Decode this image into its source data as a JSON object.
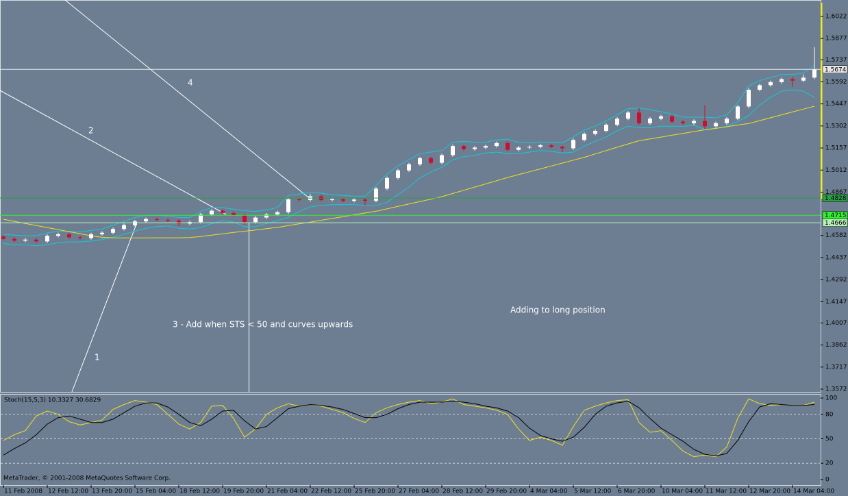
{
  "chart_data": [
    {
      "type": "candlestick",
      "categories": [
        "11 Feb 2008",
        null,
        null,
        null,
        "12 Feb 12:00",
        null,
        null,
        null,
        "13 Feb 20:00",
        null,
        null,
        null,
        "15 Feb 04:00",
        null,
        null,
        null,
        "18 Feb 12:00",
        null,
        null,
        null,
        "19 Feb 20:00",
        null,
        null,
        null,
        "21 Feb 04:00",
        null,
        null,
        null,
        "22 Feb 12:00",
        null,
        null,
        null,
        "25 Feb 20:00",
        null,
        null,
        null,
        "27 Feb 04:00",
        null,
        null,
        null,
        "28 Feb 12:00",
        null,
        null,
        null,
        "29 Feb 20:00",
        null,
        null,
        null,
        "4 Mar 04:00",
        null,
        null,
        null,
        "5 Mar 12:00",
        null,
        null,
        null,
        "6 Mar 20:00",
        null,
        null,
        null,
        "10 Mar 04:00",
        null,
        null,
        null,
        "11 Mar 12:00",
        null,
        null,
        null,
        "12 Mar 20:00",
        null,
        null,
        null,
        "14 Mar 04:00",
        null,
        null
      ],
      "ohlc": [
        [
          1.4575,
          1.4585,
          1.455,
          1.456
        ],
        [
          1.456,
          1.457,
          1.4538,
          1.4548
        ],
        [
          1.4548,
          1.4565,
          1.4538,
          1.4555
        ],
        [
          1.4555,
          1.4565,
          1.4533,
          1.4543
        ],
        [
          1.4543,
          1.459,
          1.4533,
          1.458
        ],
        [
          1.458,
          1.46,
          1.457,
          1.459
        ],
        [
          1.459,
          1.46,
          1.456,
          1.457
        ],
        [
          1.457,
          1.458,
          1.4555,
          1.4565
        ],
        [
          1.4565,
          1.46,
          1.4555,
          1.459
        ],
        [
          1.459,
          1.461,
          1.458,
          1.46
        ],
        [
          1.46,
          1.4635,
          1.459,
          1.4625
        ],
        [
          1.4625,
          1.466,
          1.4615,
          1.465
        ],
        [
          1.465,
          1.4685,
          1.464,
          1.4675
        ],
        [
          1.4675,
          1.47,
          1.4665,
          1.469
        ],
        [
          1.469,
          1.47,
          1.4675,
          1.4685
        ],
        [
          1.4685,
          1.4695,
          1.467,
          1.468
        ],
        [
          1.468,
          1.469,
          1.4645,
          1.466
        ],
        [
          1.466,
          1.468,
          1.465,
          1.467
        ],
        [
          1.467,
          1.473,
          1.466,
          1.472
        ],
        [
          1.472,
          1.4755,
          1.471,
          1.4745
        ],
        [
          1.4745,
          1.4755,
          1.472,
          1.473
        ],
        [
          1.473,
          1.474,
          1.4705,
          1.4715
        ],
        [
          1.4715,
          1.4725,
          1.465,
          1.467
        ],
        [
          1.467,
          1.471,
          1.466,
          1.47
        ],
        [
          1.47,
          1.473,
          1.469,
          1.472
        ],
        [
          1.472,
          1.4745,
          1.471,
          1.4735
        ],
        [
          1.4735,
          1.483,
          1.4725,
          1.482
        ],
        [
          1.482,
          1.483,
          1.4805,
          1.4815
        ],
        [
          1.4815,
          1.4855,
          1.4805,
          1.484
        ],
        [
          1.484,
          1.485,
          1.4805,
          1.4815
        ],
        [
          1.4815,
          1.483,
          1.4805,
          1.482
        ],
        [
          1.482,
          1.483,
          1.48,
          1.481
        ],
        [
          1.481,
          1.4828,
          1.48,
          1.4818
        ],
        [
          1.4818,
          1.4828,
          1.478,
          1.481
        ],
        [
          1.481,
          1.49,
          1.48,
          1.489
        ],
        [
          1.489,
          1.497,
          1.488,
          1.496
        ],
        [
          1.496,
          1.502,
          1.495,
          1.501
        ],
        [
          1.501,
          1.506,
          1.5,
          1.505
        ],
        [
          1.505,
          1.51,
          1.504,
          1.509
        ],
        [
          1.509,
          1.51,
          1.505,
          1.506
        ],
        [
          1.506,
          1.512,
          1.505,
          1.511
        ],
        [
          1.511,
          1.518,
          1.51,
          1.517
        ],
        [
          1.517,
          1.518,
          1.514,
          1.515
        ],
        [
          1.515,
          1.517,
          1.514,
          1.516
        ],
        [
          1.516,
          1.518,
          1.515,
          1.517
        ],
        [
          1.517,
          1.52,
          1.516,
          1.519
        ],
        [
          1.519,
          1.52,
          1.5135,
          1.5145
        ],
        [
          1.5145,
          1.517,
          1.5135,
          1.516
        ],
        [
          1.516,
          1.5175,
          1.515,
          1.5165
        ],
        [
          1.5165,
          1.5185,
          1.5155,
          1.5175
        ],
        [
          1.5175,
          1.5185,
          1.5155,
          1.5165
        ],
        [
          1.5165,
          1.5175,
          1.513,
          1.5155
        ],
        [
          1.5155,
          1.522,
          1.5145,
          1.521
        ],
        [
          1.521,
          1.526,
          1.52,
          1.525
        ],
        [
          1.525,
          1.528,
          1.524,
          1.527
        ],
        [
          1.527,
          1.532,
          1.526,
          1.531
        ],
        [
          1.531,
          1.536,
          1.53,
          1.535
        ],
        [
          1.535,
          1.54,
          1.534,
          1.539
        ],
        [
          1.539,
          1.542,
          1.531,
          1.532
        ],
        [
          1.532,
          1.536,
          1.531,
          1.535
        ],
        [
          1.535,
          1.5375,
          1.534,
          1.5365
        ],
        [
          1.5365,
          1.5375,
          1.532,
          1.533
        ],
        [
          1.533,
          1.534,
          1.531,
          1.532
        ],
        [
          1.532,
          1.5345,
          1.531,
          1.5335
        ],
        [
          1.5335,
          1.544,
          1.528,
          1.53
        ],
        [
          1.53,
          1.533,
          1.529,
          1.532
        ],
        [
          1.532,
          1.536,
          1.531,
          1.535
        ],
        [
          1.535,
          1.544,
          1.534,
          1.543
        ],
        [
          1.543,
          1.555,
          1.542,
          1.554
        ],
        [
          1.554,
          1.558,
          1.553,
          1.557
        ],
        [
          1.557,
          1.56,
          1.556,
          1.559
        ],
        [
          1.559,
          1.562,
          1.558,
          1.561
        ],
        [
          1.561,
          1.5625,
          1.556,
          1.56
        ],
        [
          1.56,
          1.564,
          1.559,
          1.562
        ],
        [
          1.562,
          1.582,
          1.561,
          1.5674
        ]
      ],
      "up_color": "#ffffff",
      "down_color": "#c8102e",
      "overlays": [
        {
          "color": "#18c8d8",
          "values": [
            1.459,
            1.4585,
            1.458,
            1.458,
            1.46,
            1.461,
            1.461,
            1.4605,
            1.4615,
            1.4625,
            1.465,
            1.4675,
            1.47,
            1.4715,
            1.4715,
            1.471,
            1.47,
            1.47,
            1.474,
            1.4765,
            1.4765,
            1.4755,
            1.4745,
            1.474,
            1.475,
            1.4765,
            1.4845,
            1.4855,
            1.4865,
            1.486,
            1.485,
            1.4845,
            1.484,
            1.484,
            1.491,
            1.4985,
            1.504,
            1.508,
            1.512,
            1.513,
            1.514,
            1.5195,
            1.52,
            1.5195,
            1.5195,
            1.521,
            1.5215,
            1.5195,
            1.519,
            1.5195,
            1.5195,
            1.519,
            1.523,
            1.5275,
            1.53,
            1.5335,
            1.5375,
            1.5415,
            1.542,
            1.541,
            1.5395,
            1.538,
            1.536,
            1.536,
            1.536,
            1.5355,
            1.5375,
            1.5455,
            1.5565,
            1.56,
            1.562,
            1.564,
            1.564,
            1.565,
            1.57
          ]
        },
        {
          "color": "#18c8d8",
          "values": [
            1.453,
            1.452,
            1.452,
            1.4515,
            1.452,
            1.4535,
            1.454,
            1.454,
            1.4545,
            1.4555,
            1.457,
            1.459,
            1.461,
            1.463,
            1.464,
            1.4645,
            1.463,
            1.4625,
            1.4635,
            1.466,
            1.468,
            1.467,
            1.464,
            1.464,
            1.466,
            1.468,
            1.47,
            1.474,
            1.477,
            1.478,
            1.4785,
            1.4785,
            1.4785,
            1.478,
            1.478,
            1.48,
            1.485,
            1.49,
            1.496,
            1.5,
            1.503,
            1.508,
            1.51,
            1.511,
            1.5125,
            1.513,
            1.512,
            1.512,
            1.513,
            1.514,
            1.5135,
            1.5125,
            1.513,
            1.517,
            1.52,
            1.523,
            1.527,
            1.53,
            1.529,
            1.529,
            1.53,
            1.53,
            1.53,
            1.5305,
            1.528,
            1.5285,
            1.53,
            1.533,
            1.537,
            1.544,
            1.549,
            1.553,
            1.554,
            1.553,
            1.549
          ]
        },
        {
          "color": "#f0e020",
          "values": [
            1.4689,
            1.4675,
            1.4661,
            1.4648,
            1.4634,
            1.4621,
            1.4607,
            1.4594,
            1.458,
            1.457,
            1.4567,
            1.4566,
            1.4566,
            1.4566,
            1.4567,
            1.4567,
            1.4567,
            1.4568,
            1.4575,
            1.4584,
            1.4593,
            1.4602,
            1.461,
            1.4618,
            1.4627,
            1.4635,
            1.4647,
            1.4659,
            1.467,
            1.4682,
            1.4694,
            1.4706,
            1.4718,
            1.473,
            1.4741,
            1.4757,
            1.4773,
            1.4789,
            1.4805,
            1.4821,
            1.4837,
            1.4858,
            1.4879,
            1.49,
            1.4921,
            1.4942,
            1.4963,
            1.4982,
            1.5001,
            1.502,
            1.5039,
            1.5058,
            1.5077,
            1.5096,
            1.5118,
            1.514,
            1.5162,
            1.5184,
            1.5205,
            1.5217,
            1.5229,
            1.5241,
            1.5253,
            1.5265,
            1.5277,
            1.5286,
            1.5297,
            1.5308,
            1.5318,
            1.5337,
            1.5356,
            1.5375,
            1.5394,
            1.5413,
            1.5432
          ]
        }
      ],
      "hlines": [
        {
          "value": 1.4828,
          "color": "#2e9e4a"
        },
        {
          "value": 1.4715,
          "color": "#33ee33"
        },
        {
          "value": 1.4666,
          "color": "#b8f0b8"
        },
        {
          "value": 1.5674,
          "color": "#e8e8e8"
        }
      ],
      "ylim": [
        1.3554,
        1.613
      ],
      "yticks": [
        1.6022,
        1.5877,
        1.5737,
        1.5592,
        1.5447,
        1.5302,
        1.5157,
        1.5012,
        1.4867,
        1.4582,
        1.4437,
        1.4292,
        1.4147,
        1.4007,
        1.3862,
        1.3717,
        1.3572
      ],
      "annotations": [
        "4",
        "2",
        "1",
        "3 - Add when STS < 50 and curves upwards",
        "Adding to long position"
      ]
    },
    {
      "type": "line",
      "title": "Stoch(15,5,3) 10.3327 30.6829",
      "ylim": [
        0,
        100
      ],
      "yticks": [
        100,
        80,
        50,
        20,
        0
      ],
      "grid": true,
      "series": [
        {
          "color": "#f0e020",
          "values": [
            48,
            55,
            60,
            78,
            84,
            80,
            71,
            67,
            70,
            73,
            86,
            92,
            97,
            95,
            92,
            80,
            68,
            62,
            70,
            90,
            91,
            75,
            52,
            62,
            80,
            88,
            93,
            90,
            92,
            90,
            86,
            82,
            75,
            70,
            82,
            88,
            92,
            95,
            97,
            93,
            95,
            99,
            92,
            90,
            88,
            85,
            80,
            62,
            48,
            52,
            48,
            42,
            65,
            85,
            90,
            94,
            97,
            98,
            70,
            58,
            60,
            48,
            35,
            28,
            30,
            28,
            40,
            75,
            99,
            93,
            91,
            92,
            91,
            91,
            95
          ]
        },
        {
          "color": "#000000",
          "values": [
            30,
            38,
            45,
            55,
            68,
            76,
            78,
            74,
            70,
            70,
            74,
            82,
            90,
            94,
            94,
            89,
            80,
            70,
            66,
            74,
            84,
            85,
            72,
            62,
            65,
            76,
            87,
            90,
            92,
            91,
            89,
            86,
            81,
            76,
            76,
            80,
            87,
            92,
            95,
            95,
            95,
            96,
            95,
            93,
            90,
            88,
            84,
            76,
            63,
            54,
            50,
            47,
            52,
            64,
            80,
            90,
            94,
            96,
            88,
            75,
            63,
            55,
            47,
            37,
            31,
            29,
            32,
            48,
            71,
            89,
            93,
            92,
            91,
            91,
            92
          ]
        }
      ]
    }
  ],
  "footer": "MetaTrader, © 2001-2008 MetaQuotes Software Corp."
}
